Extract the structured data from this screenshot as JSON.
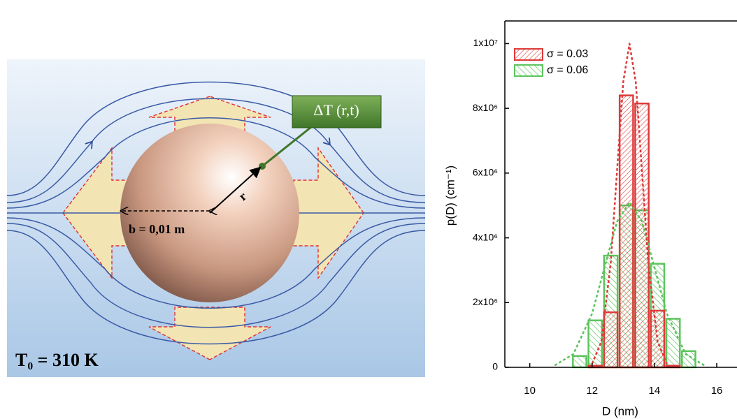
{
  "diagram": {
    "probe_label": "ΔT (r,t)",
    "radius_label": "r",
    "distance_label": "b = 0,01 m",
    "temperature_label": "T₀ = 310 K"
  },
  "chart_data": {
    "type": "histogram",
    "xlabel": "D (nm)",
    "ylabel": "p(D) (cm⁻¹)",
    "xlim": [
      9.2,
      16.65
    ],
    "ylim": [
      0,
      10700000
    ],
    "xticks": [
      10,
      12,
      14,
      16
    ],
    "yticks": [
      0,
      {
        "value": 2000000,
        "label": "2x10⁶"
      },
      {
        "value": 4000000,
        "label": "4x10⁶"
      },
      {
        "value": 6000000,
        "label": "6x10⁶"
      },
      {
        "value": 8000000,
        "label": "8x10⁶"
      },
      {
        "value": 10000000,
        "label": "1x10⁷"
      }
    ],
    "legend": "upper left",
    "series": [
      {
        "name": "σ = 0.06",
        "color": "#5cc45c",
        "bins": [
          11.35,
          11.85,
          12.35,
          12.85,
          13.35,
          13.85,
          14.35,
          14.85,
          15.35
        ],
        "values": [
          350000,
          1450000,
          3450000,
          5000000,
          4850000,
          3200000,
          1500000,
          500000
        ]
      },
      {
        "name": "σ = 0.03",
        "color": "#dd3a3a",
        "bins": [
          11.85,
          12.35,
          12.85,
          13.35,
          13.85,
          14.35,
          14.85
        ],
        "values": [
          50000,
          1700000,
          8400000,
          8150000,
          1750000,
          50000
        ]
      }
    ],
    "fits": [
      {
        "color": "#5cc45c",
        "x": [
          10.8,
          11.4,
          12.0,
          12.4,
          12.8,
          13.2,
          13.6,
          14.0,
          14.4,
          15.0,
          15.6
        ],
        "values": [
          60000,
          410000,
          1660000,
          3090000,
          4500000,
          5100000,
          4500000,
          3090000,
          1660000,
          410000,
          60000
        ]
      },
      {
        "color": "#dd3a3a",
        "x": [
          12.0,
          12.3,
          12.6,
          12.8,
          13.0,
          13.2,
          13.4,
          13.6,
          13.8,
          14.1,
          14.4
        ],
        "values": [
          110000,
          800000,
          3250000,
          6070000,
          8820000,
          10000000,
          8820000,
          6070000,
          3250000,
          800000,
          110000
        ]
      }
    ]
  }
}
